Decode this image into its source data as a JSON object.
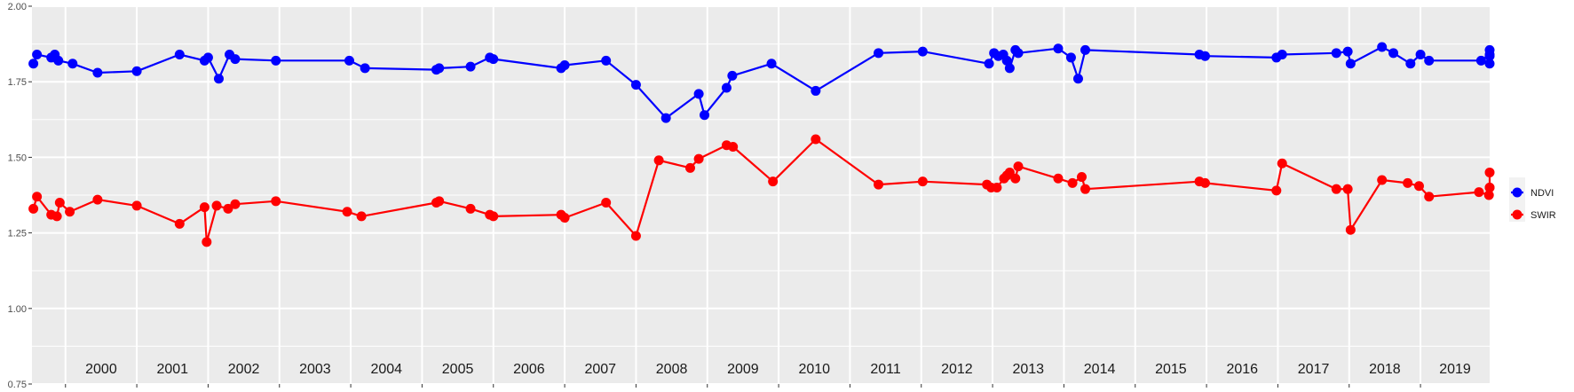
{
  "chart_data": {
    "type": "line",
    "title": "",
    "xlabel": "",
    "ylabel": "",
    "ylim": [
      0.75,
      2.0
    ],
    "yticks": [
      "0.75",
      "1.00",
      "1.25",
      "1.50",
      "1.75",
      "2.00"
    ],
    "xlim": [
      1999.53,
      2019.97
    ],
    "year_labels": [
      "2000",
      "2001",
      "2002",
      "2003",
      "2004",
      "2005",
      "2006",
      "2007",
      "2008",
      "2009",
      "2010",
      "2011",
      "2012",
      "2013",
      "2014",
      "2015",
      "2016",
      "2017",
      "2018",
      "2019"
    ],
    "grid": true,
    "legend_position": "right",
    "series": [
      {
        "name": "NDVI",
        "color": "#0000FF",
        "x": [
          1999.55,
          1999.6,
          1999.8,
          1999.85,
          1999.9,
          2000.1,
          2000.45,
          2001.0,
          2001.6,
          2001.95,
          2002.0,
          2002.15,
          2002.3,
          2002.38,
          2002.95,
          2003.98,
          2004.2,
          2005.2,
          2005.24,
          2005.68,
          2005.95,
          2006.0,
          2006.95,
          2007.0,
          2007.58,
          2008.0,
          2008.42,
          2008.88,
          2008.96,
          2009.27,
          2009.35,
          2009.9,
          2010.52,
          2011.4,
          2012.02,
          2012.95,
          2013.02,
          2013.08,
          2013.15,
          2013.2,
          2013.24,
          2013.32,
          2013.36,
          2013.92,
          2014.1,
          2014.2,
          2014.3,
          2015.9,
          2015.98,
          2016.98,
          2017.06,
          2017.82,
          2017.98,
          2018.02,
          2018.46,
          2018.62,
          2018.86,
          2019.0,
          2019.12,
          2019.85,
          2019.98,
          2020.12,
          2020.3,
          2020.35
        ],
        "y": [
          1.81,
          1.84,
          1.83,
          1.84,
          1.82,
          1.81,
          1.78,
          1.785,
          1.84,
          1.82,
          1.83,
          1.76,
          1.84,
          1.825,
          1.82,
          1.82,
          1.795,
          1.79,
          1.795,
          1.8,
          1.83,
          1.825,
          1.795,
          1.805,
          1.82,
          1.74,
          1.63,
          1.71,
          1.64,
          1.73,
          1.77,
          1.81,
          1.72,
          1.845,
          1.85,
          1.81,
          1.845,
          1.835,
          1.84,
          1.82,
          1.795,
          1.855,
          1.845,
          1.86,
          1.83,
          1.76,
          1.855,
          1.84,
          1.835,
          1.83,
          1.84,
          1.845,
          1.85,
          1.81,
          1.865,
          1.845,
          1.81,
          1.84,
          1.82,
          1.82,
          1.84,
          1.81,
          1.835,
          1.855
        ]
      },
      {
        "name": "SWIR",
        "color": "#FF0000",
        "x": [
          1999.55,
          1999.6,
          1999.8,
          1999.88,
          1999.92,
          2000.06,
          2000.45,
          2001.0,
          2001.6,
          2001.95,
          2001.98,
          2002.12,
          2002.28,
          2002.38,
          2002.95,
          2003.95,
          2004.15,
          2005.2,
          2005.24,
          2005.68,
          2005.95,
          2006.0,
          2006.95,
          2007.0,
          2007.58,
          2008.0,
          2008.32,
          2008.76,
          2008.88,
          2009.27,
          2009.36,
          2009.92,
          2010.52,
          2011.4,
          2012.02,
          2012.92,
          2012.98,
          2013.06,
          2013.16,
          2013.2,
          2013.24,
          2013.32,
          2013.36,
          2013.92,
          2014.12,
          2014.25,
          2014.3,
          2015.9,
          2015.98,
          2016.98,
          2017.06,
          2017.82,
          2017.98,
          2018.02,
          2018.46,
          2018.82,
          2018.98,
          2019.12,
          2019.82,
          2019.96,
          2020.12,
          2020.3,
          2020.32
        ],
        "y": [
          1.33,
          1.37,
          1.31,
          1.305,
          1.35,
          1.32,
          1.36,
          1.34,
          1.28,
          1.335,
          1.22,
          1.34,
          1.33,
          1.345,
          1.355,
          1.32,
          1.305,
          1.35,
          1.355,
          1.33,
          1.31,
          1.305,
          1.31,
          1.3,
          1.35,
          1.24,
          1.49,
          1.465,
          1.495,
          1.54,
          1.535,
          1.42,
          1.56,
          1.41,
          1.42,
          1.41,
          1.4,
          1.4,
          1.43,
          1.44,
          1.45,
          1.43,
          1.47,
          1.43,
          1.415,
          1.435,
          1.395,
          1.42,
          1.415,
          1.39,
          1.48,
          1.395,
          1.395,
          1.26,
          1.425,
          1.415,
          1.405,
          1.37,
          1.385,
          1.375,
          1.4,
          1.45,
          1.4
        ]
      }
    ]
  }
}
